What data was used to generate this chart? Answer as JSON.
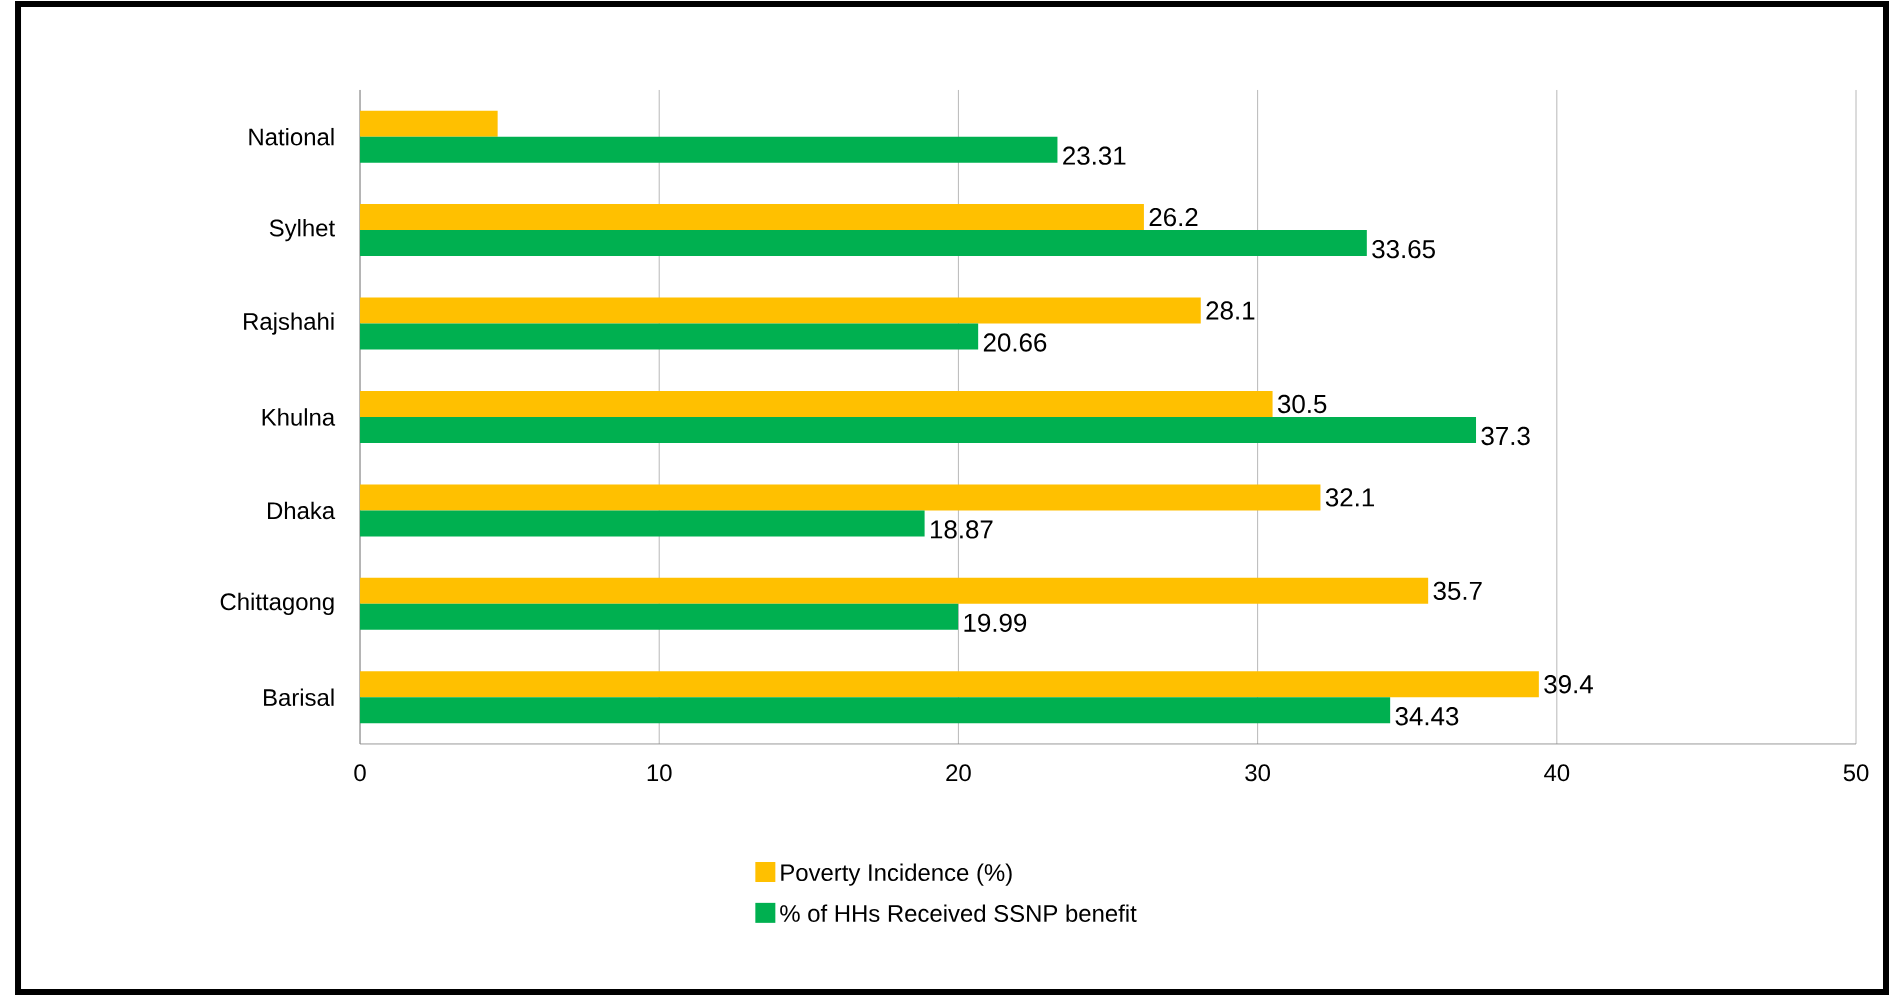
{
  "chart_data": {
    "type": "bar",
    "orientation": "horizontal",
    "categories": [
      "National",
      "Sylhet",
      "Rajshahi",
      "Khulna",
      "Dhaka",
      "Chittagong",
      "Barisal"
    ],
    "series": [
      {
        "name": "Poverty Incidence (%)",
        "color": "#ffc000",
        "values": [
          4.6,
          26.2,
          28.1,
          30.5,
          32.1,
          35.7,
          39.4
        ],
        "value_labels": [
          null,
          "26.2",
          "28.1",
          "30.5",
          "32.1",
          "35.7",
          "39.4"
        ]
      },
      {
        "name": "% of HHs Received SSNP benefit",
        "color": "#00b050",
        "values": [
          23.31,
          33.65,
          20.66,
          37.3,
          18.87,
          19.99,
          34.43
        ],
        "value_labels": [
          "23.31",
          "33.65",
          "20.66",
          "37.3",
          "18.87",
          "19.99",
          "34.43"
        ]
      }
    ],
    "xlim": [
      0,
      50
    ],
    "xticks": [
      0,
      10,
      20,
      30,
      40,
      50
    ],
    "grid": "x",
    "legend": "bottom"
  }
}
